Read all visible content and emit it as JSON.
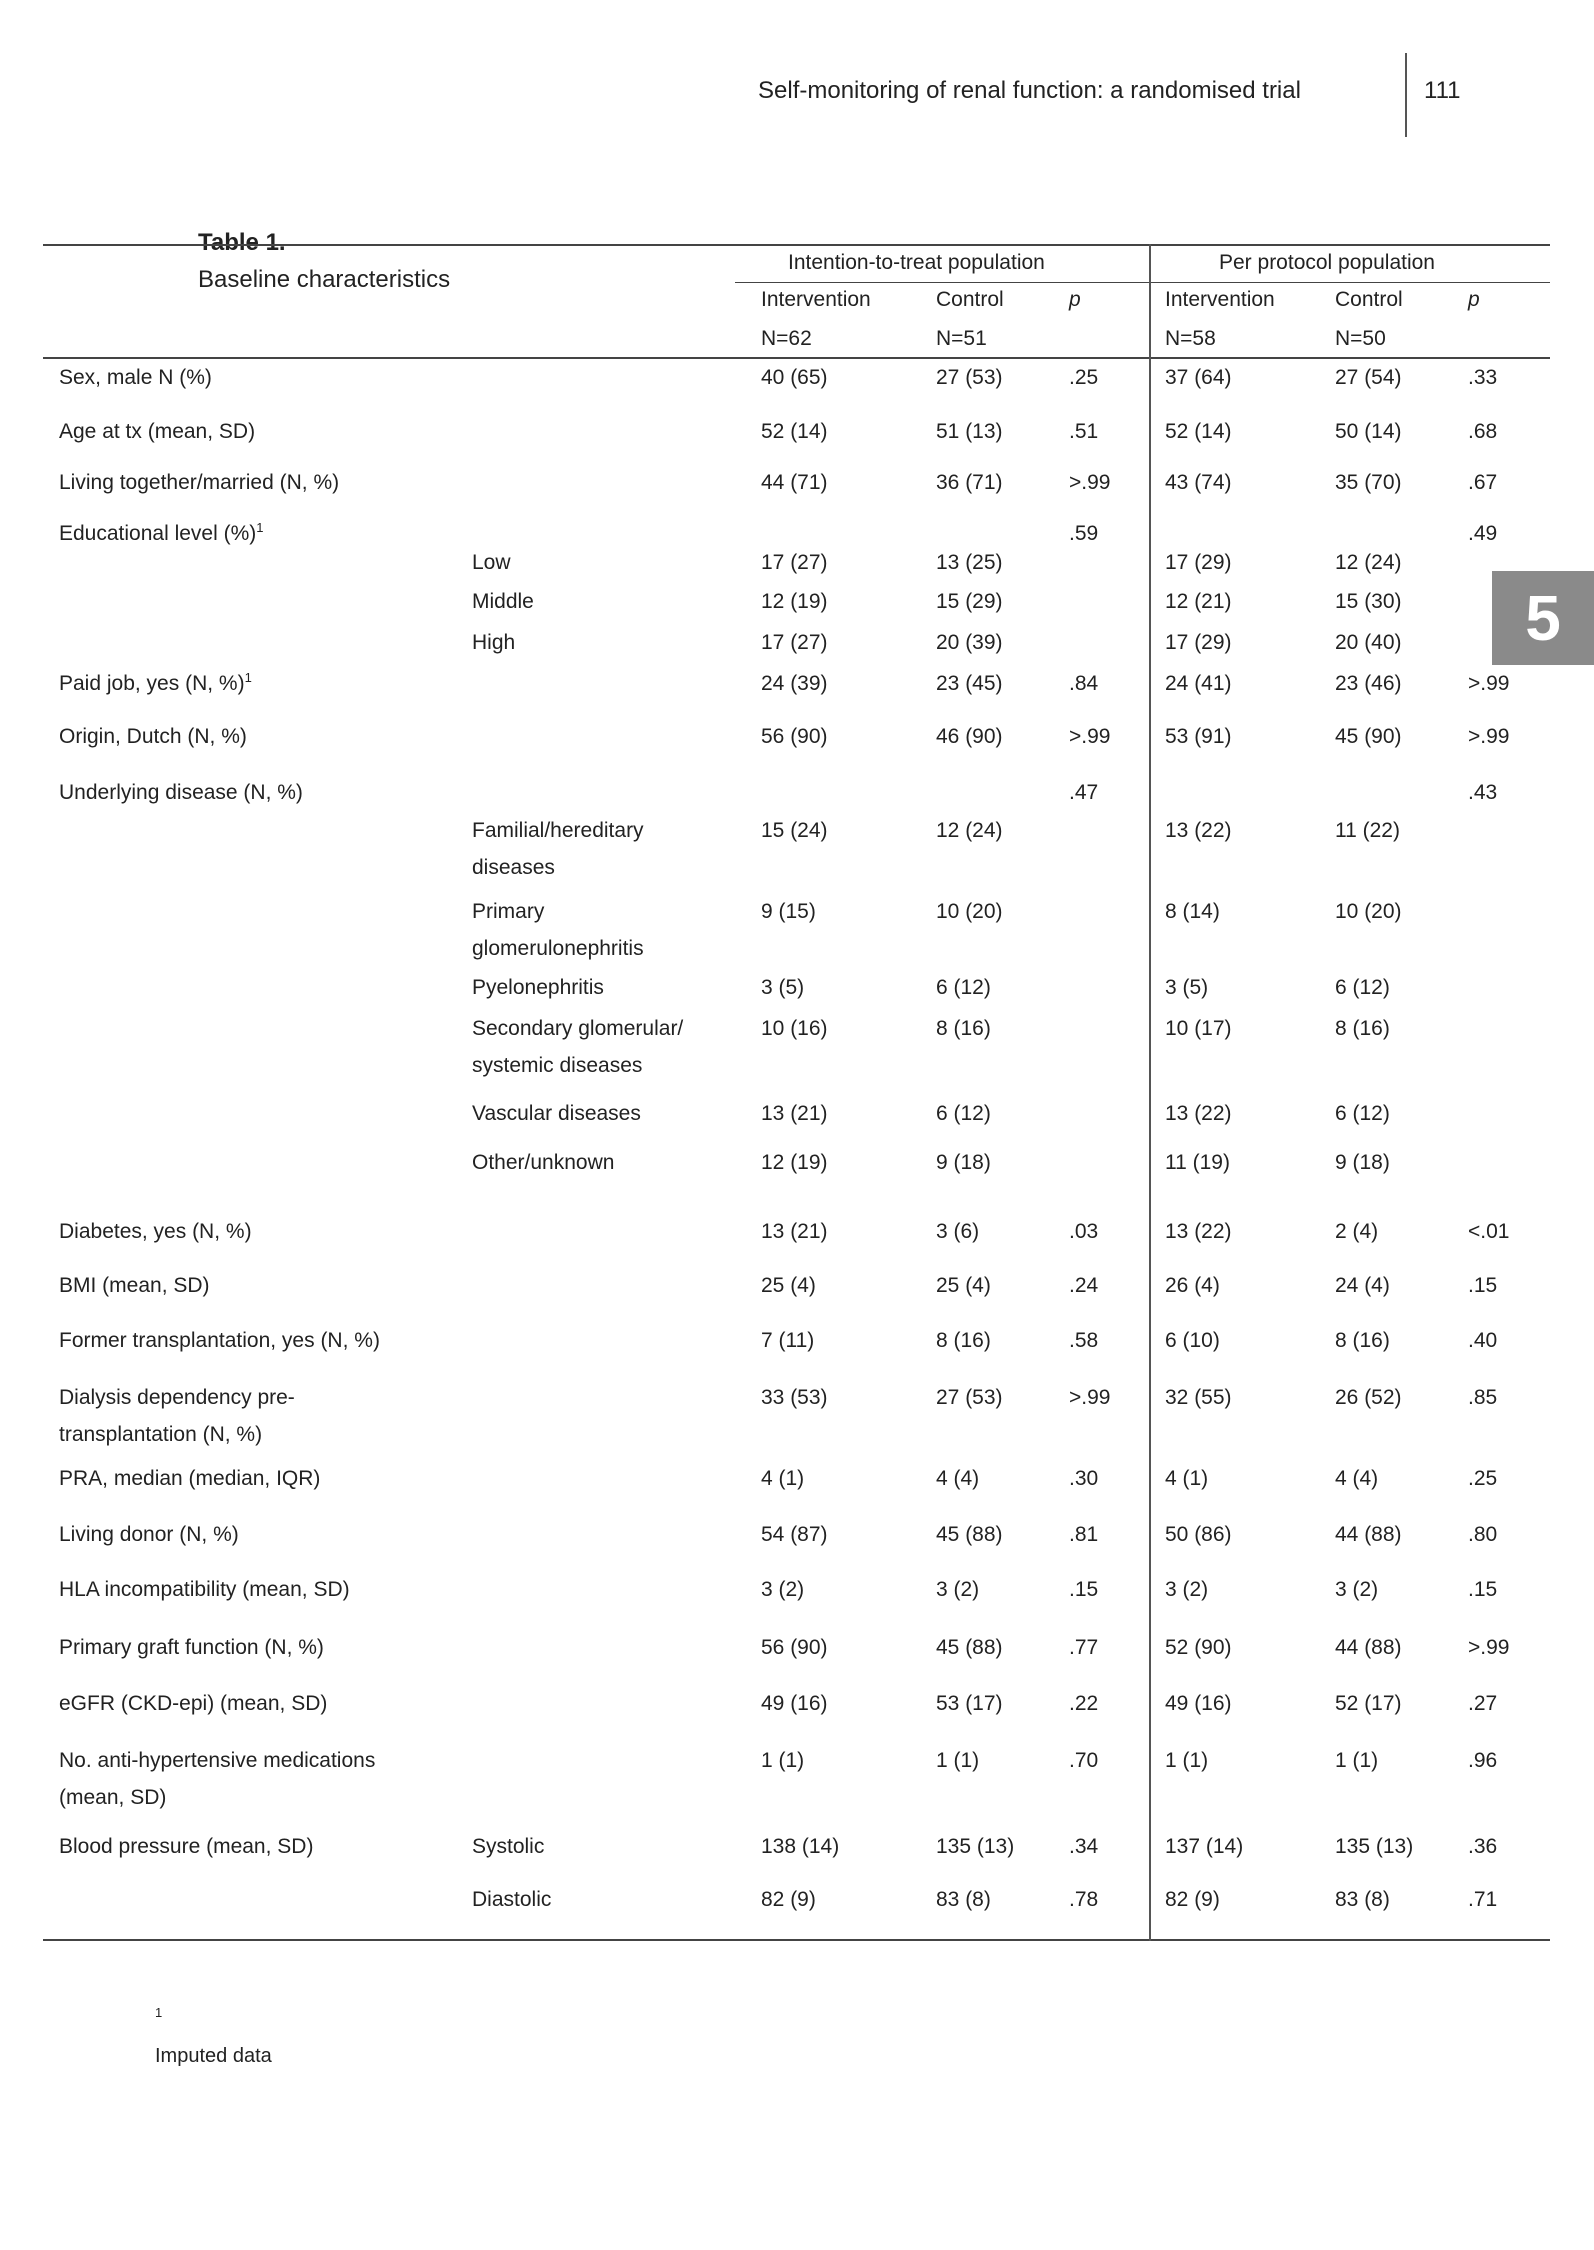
{
  "running_header": {
    "title": "Self-monitoring of renal function: a randomised trial",
    "page_number": "111"
  },
  "chapter_tab": "5",
  "table": {
    "caption_bold": "Table 1.",
    "caption_text": "Baseline characteristics",
    "group_headers": [
      "Intention-to-treat population",
      "Per protocol population"
    ],
    "column_headers": [
      "Intervention",
      "Control",
      "p",
      "Intervention",
      "Control",
      "p"
    ],
    "column_n": [
      "N=62",
      "N=51",
      "",
      "N=58",
      "N=50",
      ""
    ],
    "rows": [
      {
        "label": "Sex, male N (%)",
        "sub": "",
        "values": [
          "40 (65)",
          "27 (53)",
          ".25",
          "37 (64)",
          "27 (54)",
          ".33"
        ]
      },
      {
        "label": "Age at tx (mean, SD)",
        "sub": "",
        "values": [
          "52 (14)",
          "51 (13)",
          ".51",
          "52 (14)",
          "50 (14)",
          ".68"
        ]
      },
      {
        "label": "Living together/married (N, %)",
        "sub": "",
        "values": [
          "44 (71)",
          "36 (71)",
          ">.99",
          "43 (74)",
          "35 (70)",
          ".67"
        ]
      },
      {
        "label": "Educational level (%)",
        "sup": "1",
        "sub": "",
        "values": [
          "",
          "",
          ".59",
          "",
          "",
          ".49"
        ]
      },
      {
        "label": "",
        "sub": "Low",
        "values": [
          "17 (27)",
          "13 (25)",
          "",
          "17 (29)",
          "12 (24)",
          ""
        ]
      },
      {
        "label": "",
        "sub": "Middle",
        "values": [
          "12 (19)",
          "15 (29)",
          "",
          "12 (21)",
          "15 (30)",
          ""
        ]
      },
      {
        "label": "",
        "sub": "High",
        "values": [
          "17 (27)",
          "20 (39)",
          "",
          "17 (29)",
          "20 (40)",
          ""
        ]
      },
      {
        "label": "Paid job, yes (N, %)",
        "sup": "1",
        "sub": "",
        "values": [
          "24 (39)",
          "23 (45)",
          ".84",
          "24 (41)",
          "23 (46)",
          ">.99"
        ]
      },
      {
        "label": "Origin, Dutch (N, %)",
        "sub": "",
        "values": [
          "56 (90)",
          "46 (90)",
          ">.99",
          "53 (91)",
          "45 (90)",
          ">.99"
        ]
      },
      {
        "label": "Underlying disease (N, %)",
        "sub": "",
        "values": [
          "",
          "",
          ".47",
          "",
          "",
          ".43"
        ]
      },
      {
        "label": "",
        "sub": "Familial/hereditary\ndiseases",
        "values": [
          "15 (24)",
          "12 (24)",
          "",
          "13 (22)",
          "11 (22)",
          ""
        ]
      },
      {
        "label": "",
        "sub": "Primary\nglomerulonephritis",
        "values": [
          "9 (15)",
          "10 (20)",
          "",
          "8 (14)",
          "10 (20)",
          ""
        ]
      },
      {
        "label": "",
        "sub": "Pyelonephritis",
        "values": [
          "3 (5)",
          "6 (12)",
          "",
          "3 (5)",
          "6 (12)",
          ""
        ]
      },
      {
        "label": "",
        "sub": "Secondary glomerular/\nsystemic diseases",
        "values": [
          "10 (16)",
          "8 (16)",
          "",
          "10 (17)",
          "8 (16)",
          ""
        ]
      },
      {
        "label": "",
        "sub": "Vascular diseases",
        "values": [
          "13 (21)",
          "6 (12)",
          "",
          "13 (22)",
          "6 (12)",
          ""
        ]
      },
      {
        "label": "",
        "sub": "Other/unknown",
        "values": [
          "12 (19)",
          "9 (18)",
          "",
          "11 (19)",
          "9 (18)",
          ""
        ]
      },
      {
        "label": "Diabetes, yes (N, %)",
        "sub": "",
        "values": [
          "13 (21)",
          "3 (6)",
          ".03",
          "13 (22)",
          "2 (4)",
          "<.01"
        ]
      },
      {
        "label": "BMI (mean, SD)",
        "sub": "",
        "values": [
          "25 (4)",
          "25 (4)",
          ".24",
          "26 (4)",
          "24 (4)",
          ".15"
        ]
      },
      {
        "label": "Former transplantation, yes (N, %)",
        "sub": "",
        "values": [
          "7 (11)",
          "8 (16)",
          ".58",
          "6 (10)",
          "8 (16)",
          ".40"
        ]
      },
      {
        "label": "Dialysis dependency pre-\ntransplantation (N, %)",
        "sub": "",
        "values": [
          "33 (53)",
          "27 (53)",
          ">.99",
          "32 (55)",
          "26 (52)",
          ".85"
        ]
      },
      {
        "label": "PRA, median (median, IQR)",
        "sub": "",
        "values": [
          "4 (1)",
          "4 (4)",
          ".30",
          "4 (1)",
          "4 (4)",
          ".25"
        ]
      },
      {
        "label": "Living donor (N, %)",
        "sub": "",
        "values": [
          "54 (87)",
          "45 (88)",
          ".81",
          "50 (86)",
          "44 (88)",
          ".80"
        ]
      },
      {
        "label": "HLA incompatibility (mean, SD)",
        "sub": "",
        "values": [
          "3 (2)",
          "3 (2)",
          ".15",
          "3 (2)",
          "3 (2)",
          ".15"
        ]
      },
      {
        "label": "Primary graft function (N, %)",
        "sub": "",
        "values": [
          "56 (90)",
          "45 (88)",
          ".77",
          "52 (90)",
          "44 (88)",
          ">.99"
        ]
      },
      {
        "label": "eGFR (CKD-epi) (mean, SD)",
        "sub": "",
        "values": [
          "49 (16)",
          "53 (17)",
          ".22",
          "49 (16)",
          "52 (17)",
          ".27"
        ]
      },
      {
        "label": "No. anti-hypertensive medications\n(mean, SD)",
        "sub": "",
        "values": [
          "1 (1)",
          "1 (1)",
          ".70",
          "1 (1)",
          "1 (1)",
          ".96"
        ]
      },
      {
        "label": "Blood pressure (mean, SD)",
        "sub": "Systolic",
        "values": [
          "138 (14)",
          "135 (13)",
          ".34",
          "137 (14)",
          "135 (13)",
          ".36"
        ]
      },
      {
        "label": "",
        "sub": "Diastolic",
        "values": [
          "82 (9)",
          "83 (8)",
          ".78",
          "82 (9)",
          "83 (8)",
          ".71"
        ]
      }
    ],
    "footnote_marker": "1",
    "footnote_text": "Imputed data"
  }
}
